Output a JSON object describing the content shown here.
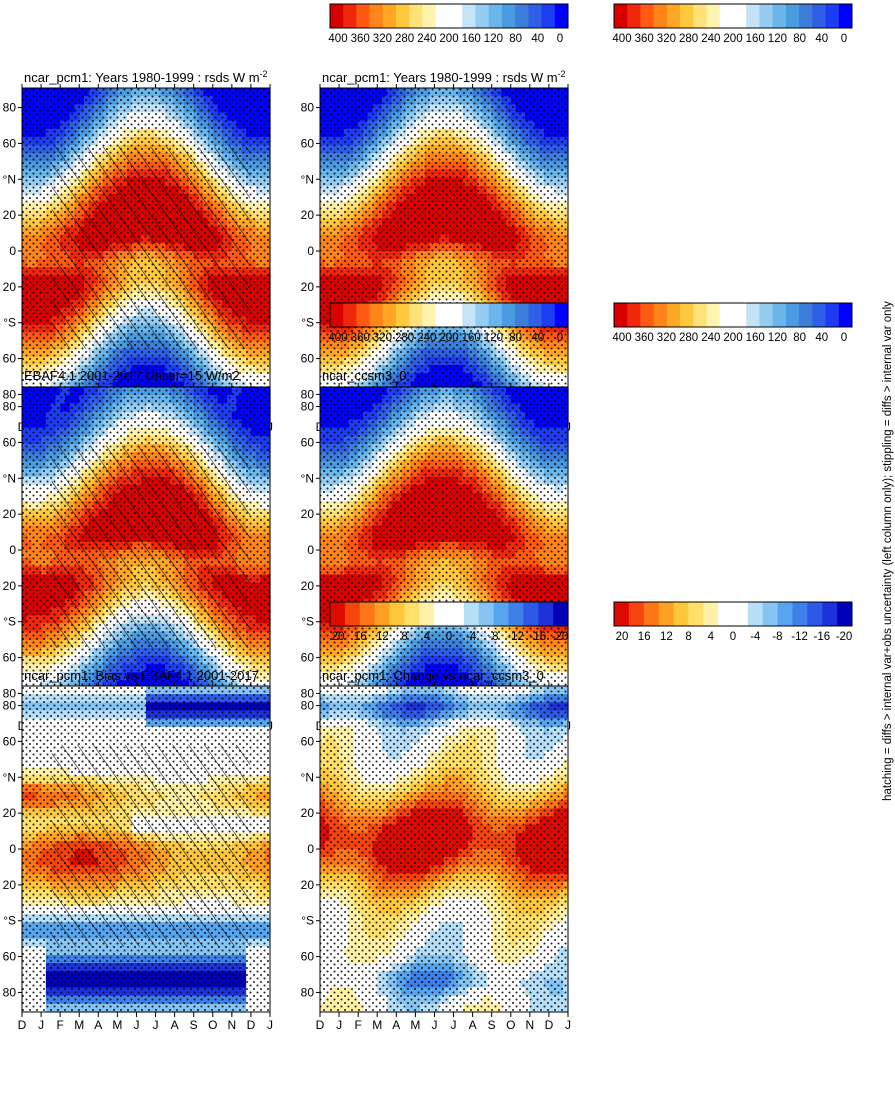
{
  "footnote": "hatching = diffs > internal var+obs uncertainty (left column only); stippling = diffs > internal var only",
  "months": [
    "D",
    "J",
    "F",
    "M",
    "A",
    "M",
    "J",
    "J",
    "A",
    "S",
    "O",
    "N",
    "D",
    "J"
  ],
  "lat_labels": [
    "80",
    "60",
    "°N",
    "20",
    "0",
    "20",
    "°S",
    "60",
    "80"
  ],
  "colors": {
    "abs": [
      "#0000ff",
      "#1e3cf2",
      "#2f5fe6",
      "#3c7ed9",
      "#4a9be0",
      "#6ab6ea",
      "#95cdf2",
      "#c4e3f7",
      "#ffffff",
      "#ffffff",
      "#fff3b0",
      "#ffe17a",
      "#ffc93f",
      "#ffa826",
      "#ff8419",
      "#ff5a12",
      "#f0280b",
      "#d90000"
    ],
    "diff": [
      "#0000b8",
      "#1e32d9",
      "#2e58e8",
      "#3e7fe8",
      "#57a5ef",
      "#86c4f3",
      "#b7dff8",
      "#ffffff",
      "#ffffff",
      "#fff2a8",
      "#ffe06a",
      "#ffc83c",
      "#ffa023",
      "#ff7616",
      "#f6450c",
      "#dc0a00"
    ]
  },
  "chart_data": [
    {
      "type": "heatmap",
      "title": "ncar_pcm1: Years 1980-1999 : rsds W m",
      "title_sup": "-2",
      "kind": "abs",
      "hatch": true,
      "variant": 0,
      "colorbar": {
        "ticks": [
          "400",
          "360",
          "320",
          "280",
          "240",
          "200",
          "160",
          "120",
          "80",
          "40",
          "0"
        ]
      }
    },
    {
      "type": "heatmap",
      "title": "ncar_pcm1: Years 1980-1999 : rsds W m",
      "title_sup": "-2",
      "kind": "abs",
      "hatch": false,
      "variant": 0,
      "colorbar": {
        "ticks": [
          "400",
          "360",
          "320",
          "280",
          "240",
          "200",
          "160",
          "120",
          "80",
          "40",
          "0"
        ]
      }
    },
    {
      "type": "heatmap",
      "title": "EBAF4.1 2001-2017 Uncer=15 W/m2",
      "title_sup": "",
      "kind": "abs",
      "hatch": true,
      "variant": 1,
      "colorbar": {
        "ticks": [
          "400",
          "360",
          "320",
          "280",
          "240",
          "200",
          "160",
          "120",
          "80",
          "40",
          "0"
        ]
      }
    },
    {
      "type": "heatmap",
      "title": "ncar_ccsm3_0",
      "title_sup": "",
      "kind": "abs",
      "hatch": false,
      "variant": 2,
      "colorbar": {
        "ticks": [
          "400",
          "360",
          "320",
          "280",
          "240",
          "200",
          "160",
          "120",
          "80",
          "40",
          "0"
        ]
      }
    },
    {
      "type": "heatmap",
      "title": "ncar_pcm1: Bias vs EBAF4.1 2001-2017",
      "title_sup": "",
      "kind": "bias",
      "hatch": true,
      "variant": 3,
      "colorbar": {
        "ticks": [
          "20",
          "16",
          "12",
          "8",
          "4",
          "0",
          "-4",
          "-8",
          "-12",
          "-16",
          "-20"
        ]
      }
    },
    {
      "type": "heatmap",
      "title": "ncar_pcm1: Change vs ncar_ccsm3_0",
      "title_sup": "",
      "kind": "change",
      "hatch": false,
      "variant": 4,
      "colorbar": {
        "ticks": [
          "20",
          "16",
          "12",
          "8",
          "4",
          "0",
          "-4",
          "-8",
          "-12",
          "-16",
          "-20"
        ]
      }
    }
  ]
}
